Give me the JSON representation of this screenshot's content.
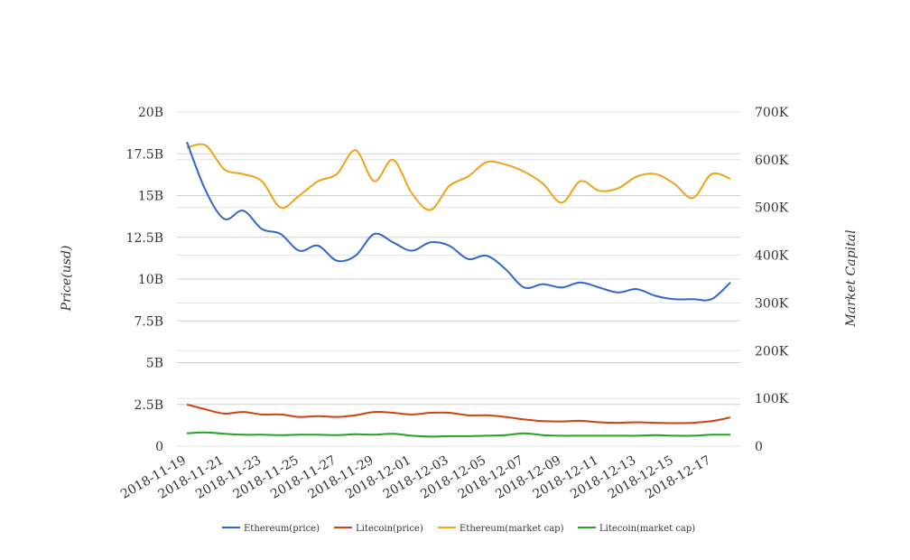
{
  "chart_data": {
    "type": "line",
    "title": "",
    "ylabel_left": "Price(usd)",
    "ylabel_right": "Market Capital",
    "left_axis": {
      "min": 0,
      "max": 20000000000,
      "ticks": [
        0,
        2500000000,
        5000000000,
        7500000000,
        10000000000,
        12500000000,
        15000000000,
        17500000000,
        20000000000
      ],
      "tick_labels": [
        "0",
        "2.5B",
        "5B",
        "7.5B",
        "10B",
        "12.5B",
        "15B",
        "17.5B",
        "20B"
      ]
    },
    "right_axis": {
      "min": 0,
      "max": 700000,
      "ticks": [
        0,
        100000,
        200000,
        300000,
        400000,
        500000,
        600000,
        700000
      ],
      "tick_labels": [
        "0",
        "100K",
        "200K",
        "300K",
        "400K",
        "500K",
        "600K",
        "700K"
      ]
    },
    "x_tick_labels": [
      "2018-11-19",
      "2018-11-21",
      "2018-11-23",
      "2018-11-25",
      "2018-11-27",
      "2018-11-29",
      "2018-12-01",
      "2018-12-03",
      "2018-12-05",
      "2018-12-07",
      "2018-12-09",
      "2018-12-11",
      "2018-12-13",
      "2018-12-15",
      "2018-12-17"
    ],
    "x": [
      "2018-11-19",
      "2018-11-20",
      "2018-11-21",
      "2018-11-22",
      "2018-11-23",
      "2018-11-24",
      "2018-11-25",
      "2018-11-26",
      "2018-11-27",
      "2018-11-28",
      "2018-11-29",
      "2018-11-30",
      "2018-12-01",
      "2018-12-02",
      "2018-12-03",
      "2018-12-04",
      "2018-12-05",
      "2018-12-06",
      "2018-12-07",
      "2018-12-08",
      "2018-12-09",
      "2018-12-10",
      "2018-12-11",
      "2018-12-12",
      "2018-12-13",
      "2018-12-14",
      "2018-12-15",
      "2018-12-16",
      "2018-12-17",
      "2018-12-18"
    ],
    "grid": true,
    "legend_position": "bottom",
    "series": [
      {
        "name": "Ethereum(price)",
        "axis": "left",
        "color": "#3366cc",
        "values": [
          18200000000,
          15300000000,
          13600000000,
          14100000000,
          13000000000,
          12700000000,
          11700000000,
          12000000000,
          11100000000,
          11400000000,
          12700000000,
          12200000000,
          11700000000,
          12200000000,
          12000000000,
          11200000000,
          11400000000,
          10600000000,
          9500000000,
          9700000000,
          9500000000,
          9800000000,
          9500000000,
          9200000000,
          9400000000,
          9000000000,
          8800000000,
          8800000000,
          8800000000,
          9800000000
        ]
      },
      {
        "name": "Litecoin(price)",
        "axis": "left",
        "color": "#cc4411",
        "values": [
          2500000000,
          2200000000,
          1950000000,
          2050000000,
          1900000000,
          1900000000,
          1750000000,
          1800000000,
          1750000000,
          1850000000,
          2050000000,
          2000000000,
          1900000000,
          2000000000,
          2000000000,
          1850000000,
          1850000000,
          1750000000,
          1600000000,
          1500000000,
          1480000000,
          1520000000,
          1430000000,
          1400000000,
          1430000000,
          1400000000,
          1380000000,
          1400000000,
          1500000000,
          1720000000
        ]
      },
      {
        "name": "Ethereum(market cap)",
        "axis": "right",
        "color": "#eea319",
        "values": [
          625000,
          630000,
          580000,
          570000,
          555000,
          500000,
          525000,
          555000,
          570000,
          620000,
          555000,
          600000,
          530000,
          495000,
          545000,
          565000,
          595000,
          590000,
          575000,
          550000,
          510000,
          555000,
          535000,
          540000,
          565000,
          570000,
          550000,
          520000,
          570000,
          560000
        ]
      },
      {
        "name": "Litecoin(market cap)",
        "axis": "right",
        "color": "#22a322",
        "values": [
          27000,
          29000,
          26000,
          24000,
          24000,
          23000,
          24000,
          24000,
          23000,
          25000,
          24000,
          26000,
          22000,
          20000,
          21000,
          21000,
          22000,
          23000,
          27000,
          23000,
          22000,
          22000,
          22000,
          22000,
          22000,
          23000,
          22000,
          22000,
          24000,
          24000
        ]
      }
    ]
  }
}
